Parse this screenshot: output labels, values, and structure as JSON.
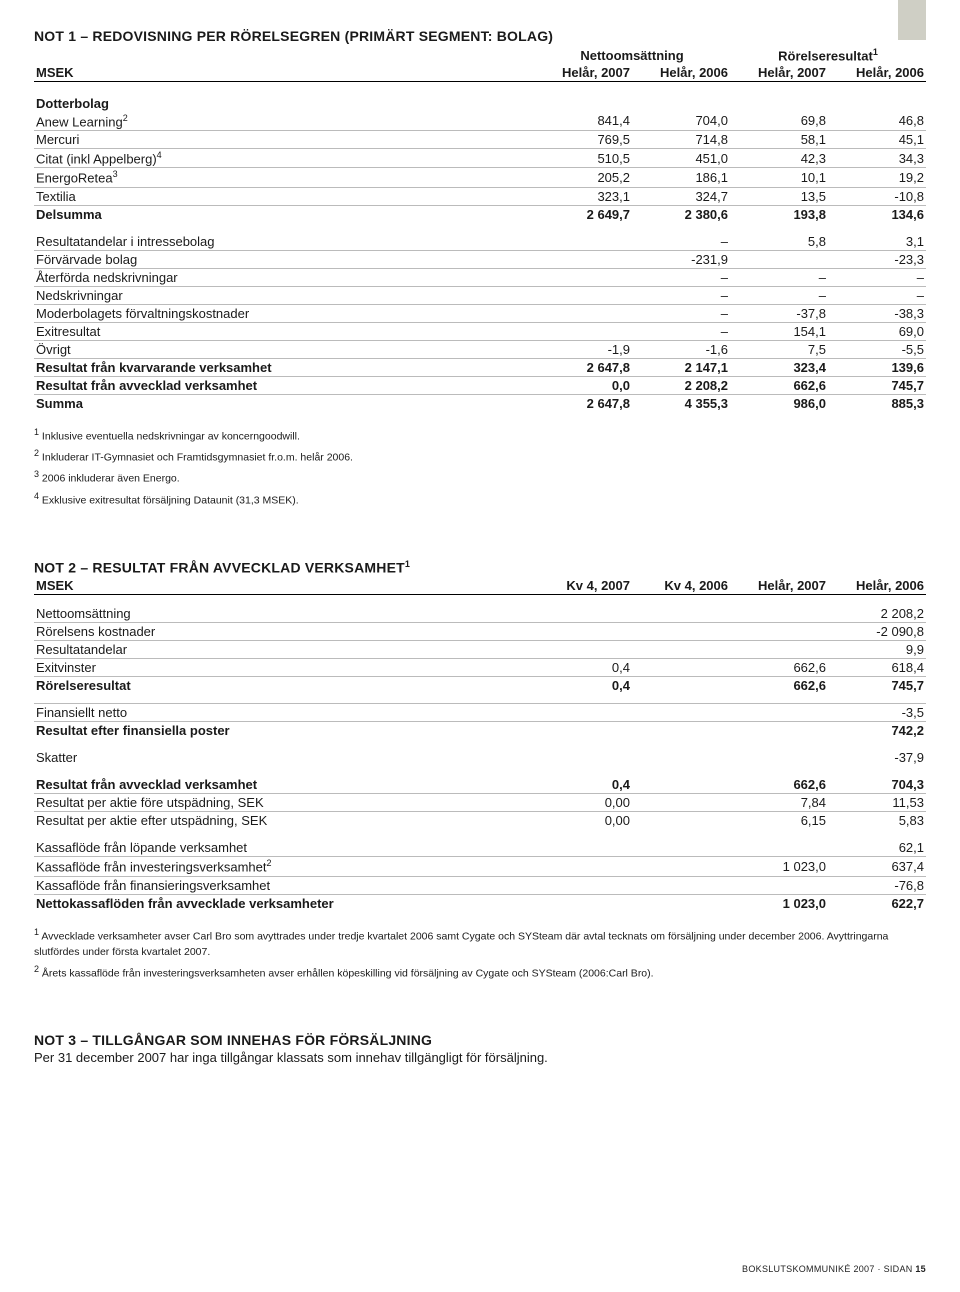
{
  "note1": {
    "title": "NOT 1 – REDOVISNING PER RÖRELSEGREN (PRIMÄRT SEGMENT: BOLAG)",
    "group_headers": {
      "netto": "Nettoomsättning",
      "rorelse": "Rörelseresultat",
      "rorelse_sup": "1"
    },
    "col_msek": "MSEK",
    "cols": [
      "Helår, 2007",
      "Helår, 2006",
      "Helår, 2007",
      "Helår, 2006"
    ],
    "section_dotterbolag": "Dotterbolag",
    "rows_dotter": [
      {
        "label": "Anew Learning",
        "sup": "2",
        "v": [
          "841,4",
          "704,0",
          "69,8",
          "46,8"
        ]
      },
      {
        "label": "Mercuri",
        "v": [
          "769,5",
          "714,8",
          "58,1",
          "45,1"
        ]
      },
      {
        "label": "Citat (inkl Appelberg)",
        "sup": "4",
        "v": [
          "510,5",
          "451,0",
          "42,3",
          "34,3"
        ]
      },
      {
        "label": "EnergoRetea",
        "sup": "3",
        "v": [
          "205,2",
          "186,1",
          "10,1",
          "19,2"
        ]
      },
      {
        "label": "Textilia",
        "v": [
          "323,1",
          "324,7",
          "13,5",
          "-10,8"
        ]
      }
    ],
    "delsumma": {
      "label": "Delsumma",
      "v": [
        "2 649,7",
        "2 380,6",
        "193,8",
        "134,6"
      ]
    },
    "rows_mid": [
      {
        "label": "Resultatandelar i intressebolag",
        "v": [
          "",
          "–",
          "5,8",
          "3,1"
        ]
      },
      {
        "label": "Förvärvade bolag",
        "v": [
          "",
          "-231,9",
          "",
          "-23,3"
        ]
      },
      {
        "label": "Återförda nedskrivningar",
        "v": [
          "",
          "–",
          "–",
          "–"
        ]
      },
      {
        "label": "Nedskrivningar",
        "v": [
          "",
          "–",
          "–",
          "–"
        ]
      },
      {
        "label": "Moderbolagets förvaltningskostnader",
        "v": [
          "",
          "–",
          "-37,8",
          "-38,3"
        ]
      },
      {
        "label": "Exitresultat",
        "v": [
          "",
          "–",
          "154,1",
          "69,0"
        ]
      },
      {
        "label": "Övrigt",
        "v": [
          "-1,9",
          "-1,6",
          "7,5",
          "-5,5"
        ]
      }
    ],
    "rows_bottom": [
      {
        "label": "Resultat från kvarvarande verksamhet",
        "v": [
          "2 647,8",
          "2 147,1",
          "323,4",
          "139,6"
        ]
      },
      {
        "label": "Resultat från avvecklad verksamhet",
        "v": [
          "0,0",
          "2 208,2",
          "662,6",
          "745,7"
        ]
      },
      {
        "label": "Summa",
        "v": [
          "2 647,8",
          "4 355,3",
          "986,0",
          "885,3"
        ]
      }
    ],
    "footnotes": [
      {
        "n": "1",
        "t": "Inklusive eventuella nedskrivningar av koncerngoodwill."
      },
      {
        "n": "2",
        "t": "Inkluderar IT-Gymnasiet och Framtidsgymnasiet fr.o.m. helår 2006."
      },
      {
        "n": "3",
        "t": "2006 inkluderar även Energo."
      },
      {
        "n": "4",
        "t": "Exklusive exitresultat försäljning Dataunit (31,3 MSEK)."
      }
    ]
  },
  "note2": {
    "title": "NOT 2 – RESULTAT FRÅN AVVECKLAD VERKSAMHET",
    "title_sup": "1",
    "col_msek": "MSEK",
    "cols": [
      "Kv 4, 2007",
      "Kv 4, 2006",
      "Helår, 2007",
      "Helår, 2006"
    ],
    "rows_a": [
      {
        "label": "Nettoomsättning",
        "v": [
          "",
          "",
          "",
          "2 208,2"
        ]
      },
      {
        "label": "Rörelsens kostnader",
        "v": [
          "",
          "",
          "",
          "-2 090,8"
        ]
      },
      {
        "label": "Resultatandelar",
        "v": [
          "",
          "",
          "",
          "9,9"
        ]
      },
      {
        "label": "Exitvinster",
        "v": [
          "0,4",
          "",
          "662,6",
          "618,4"
        ]
      }
    ],
    "rorelseresultat": {
      "label": "Rörelseresultat",
      "v": [
        "0,4",
        "",
        "662,6",
        "745,7"
      ]
    },
    "finansiellt": {
      "label": "Finansiellt netto",
      "v": [
        "",
        "",
        "",
        "-3,5"
      ]
    },
    "efter_fin": {
      "label": "Resultat efter finansiella poster",
      "v": [
        "",
        "",
        "",
        "742,2"
      ]
    },
    "skatter": {
      "label": "Skatter",
      "v": [
        "",
        "",
        "",
        "-37,9"
      ]
    },
    "rows_b": [
      {
        "label": "Resultat från avvecklad verksamhet",
        "bold": true,
        "v": [
          "0,4",
          "",
          "662,6",
          "704,3"
        ]
      },
      {
        "label": "Resultat per aktie före utspädning, SEK",
        "v": [
          "0,00",
          "",
          "7,84",
          "11,53"
        ]
      },
      {
        "label": "Resultat per aktie efter utspädning, SEK",
        "v": [
          "0,00",
          "",
          "6,15",
          "5,83"
        ]
      }
    ],
    "rows_c": [
      {
        "label": "Kassaflöde från löpande verksamhet",
        "v": [
          "",
          "",
          "",
          "62,1"
        ]
      },
      {
        "label": "Kassaflöde från investeringsverksamhet",
        "sup": "2",
        "v": [
          "",
          "",
          "1 023,0",
          "637,4"
        ]
      },
      {
        "label": "Kassaflöde från finansieringsverksamhet",
        "v": [
          "",
          "",
          "",
          "-76,8"
        ]
      }
    ],
    "netto_kassa": {
      "label": "Nettokassaflöden från avvecklade verksamheter",
      "v": [
        "",
        "",
        "1 023,0",
        "622,7"
      ]
    },
    "footnotes": [
      {
        "n": "1",
        "t": "Avvecklade verksamheter avser Carl Bro som avyttrades under tredje kvartalet 2006 samt Cygate och SYSteam där avtal tecknats om försäljning under december 2006. Avyttringarna slutfördes under första kvartalet 2007."
      },
      {
        "n": "2",
        "t": "Årets kassaflöde från investeringsverksamheten avser erhållen köpeskilling vid försäljning av Cygate och SYSteam (2006:Carl Bro)."
      }
    ]
  },
  "note3": {
    "title": "NOT 3 – TILLGÅNGAR SOM INNEHAS FÖR FÖRSÄLJNING",
    "body": "Per 31 december 2007 har inga tillgångar klassats som innehav tillgängligt för försäljning."
  },
  "footer": {
    "text": "BOKSLUTSKOMMUNIKÉ 2007 · SIDAN ",
    "page": "15"
  }
}
